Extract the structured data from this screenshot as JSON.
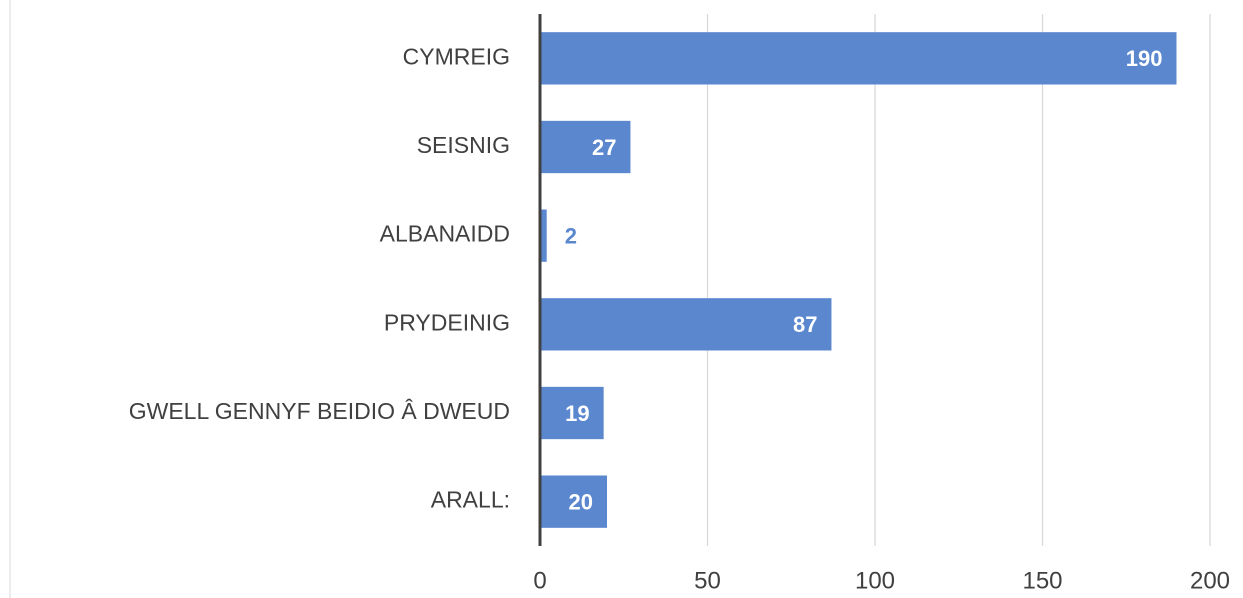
{
  "chart_data": {
    "type": "bar",
    "orientation": "horizontal",
    "categories": [
      "CYMREIG",
      "SEISNIG",
      "ALBANAIDD",
      "PRYDEINIG",
      "GWELL GENNYF BEIDIO Â DWEUD",
      "ARALL:"
    ],
    "values": [
      190,
      27,
      2,
      87,
      19,
      20
    ],
    "color": "#5b87cf",
    "xlim": [
      0,
      200
    ],
    "xticks": [
      0,
      50,
      100,
      150,
      200
    ],
    "grid": true
  }
}
